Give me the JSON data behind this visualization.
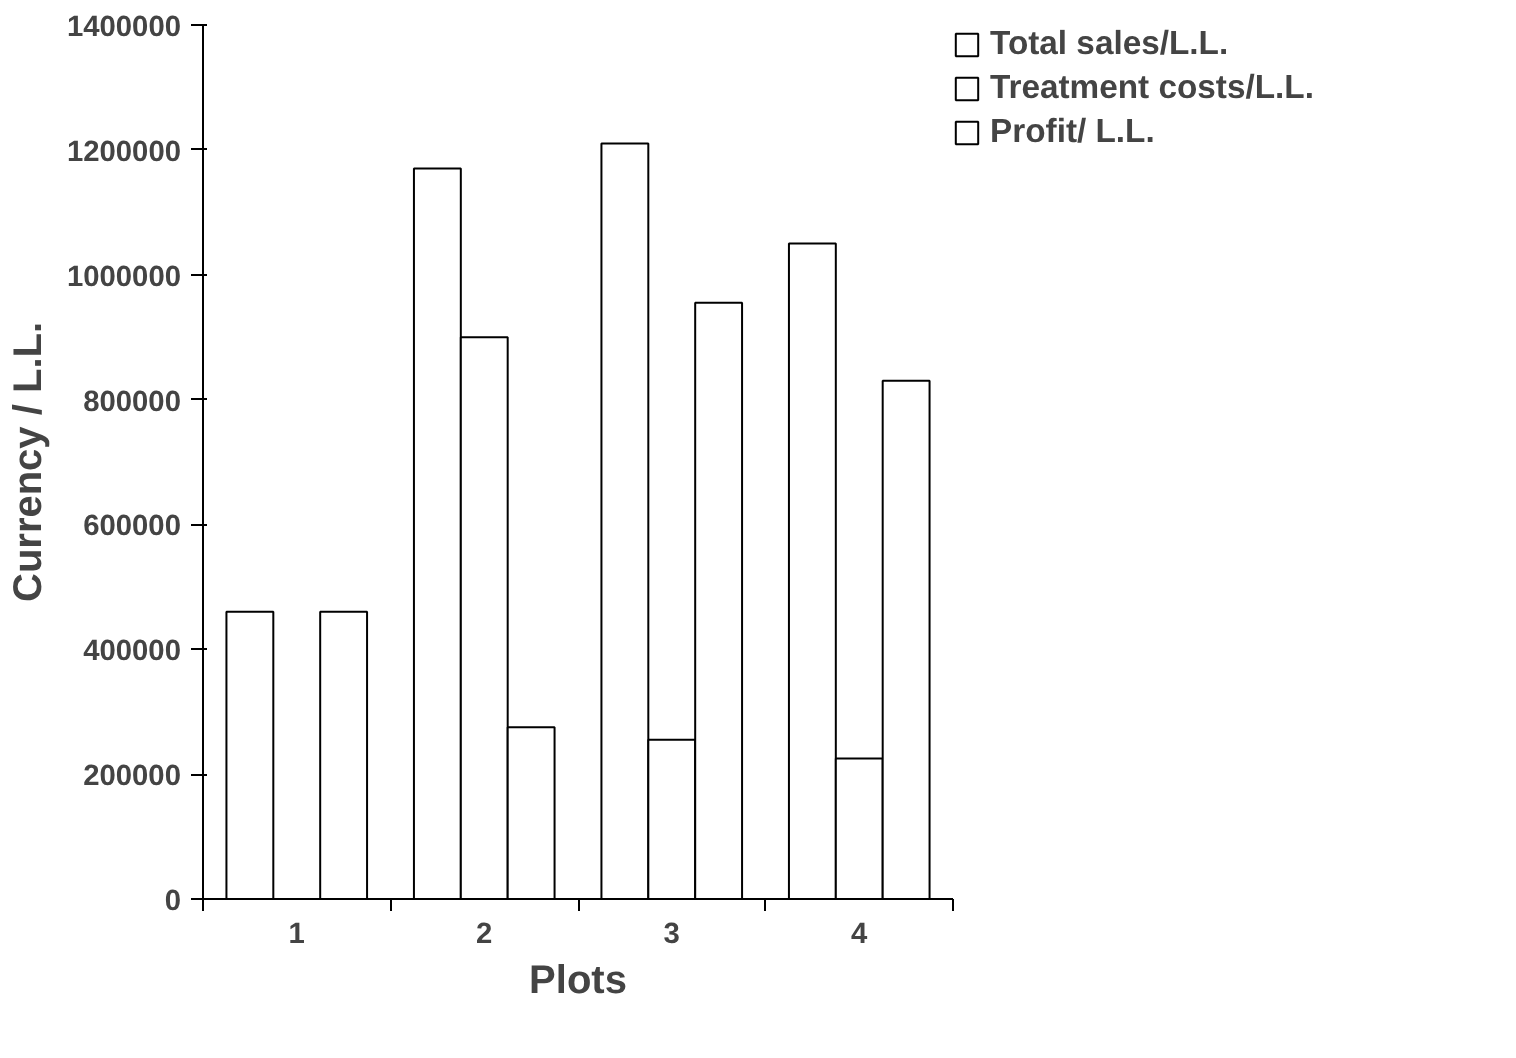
{
  "chart_data": {
    "type": "bar",
    "xlabel": "Plots",
    "ylabel": "Currency / L.L.",
    "categories": [
      "1",
      "2",
      "3",
      "4"
    ],
    "series": [
      {
        "name": "Total sales/L.L.",
        "color": "#ffffff",
        "values": [
          460000,
          1170000,
          1210000,
          1050000
        ]
      },
      {
        "name": "Treatment costs/L.L.",
        "color": "#ffffff",
        "values": [
          0,
          900000,
          255000,
          225000
        ]
      },
      {
        "name": "Profit/ L.L.",
        "color": "#ffffff",
        "values": [
          460000,
          275000,
          955000,
          830000
        ]
      }
    ],
    "ylim": [
      0,
      1400000
    ],
    "yticks": [
      0,
      200000,
      400000,
      600000,
      800000,
      1000000,
      1200000,
      1400000
    ],
    "grid": false,
    "legend": "top right"
  }
}
